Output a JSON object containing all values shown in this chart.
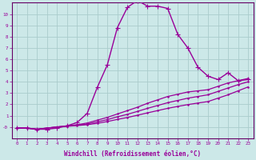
{
  "title": "",
  "xlabel": "Windchill (Refroidissement éolien,°C)",
  "ylabel": "",
  "background_color": "#cce8e8",
  "line_color": "#990099",
  "grid_color": "#aacccc",
  "axis_color": "#660066",
  "xlim_min": -0.5,
  "xlim_max": 23.5,
  "ylim_min": -1.0,
  "ylim_max": 11.0,
  "xticks": [
    0,
    1,
    2,
    3,
    4,
    5,
    6,
    7,
    8,
    9,
    10,
    11,
    12,
    13,
    14,
    15,
    16,
    17,
    18,
    19,
    20,
    21,
    22,
    23
  ],
  "yticks": [
    0,
    1,
    2,
    3,
    4,
    5,
    6,
    7,
    8,
    9,
    10
  ],
  "ytick_labels": [
    "-0",
    "1",
    "2",
    "3",
    "4",
    "5",
    "6",
    "7",
    "8",
    "9",
    "10"
  ],
  "series": [
    {
      "x": [
        0,
        1,
        2,
        3,
        4,
        5,
        6,
        7,
        8,
        9,
        10,
        11,
        12,
        13,
        14,
        15,
        16,
        17,
        18,
        19,
        20,
        21,
        22,
        23
      ],
      "y": [
        -0.1,
        -0.1,
        -0.2,
        -0.2,
        -0.1,
        0.1,
        0.4,
        1.2,
        3.5,
        5.5,
        8.8,
        10.6,
        11.2,
        10.7,
        10.7,
        10.5,
        8.2,
        7.0,
        5.3,
        4.5,
        4.2,
        4.8,
        4.1,
        4.2
      ],
      "marker": "+",
      "markersize": 4,
      "linewidth": 1.0
    },
    {
      "x": [
        0,
        1,
        2,
        3,
        4,
        5,
        6,
        7,
        8,
        9,
        10,
        11,
        12,
        13,
        14,
        15,
        16,
        17,
        18,
        19,
        20,
        21,
        22,
        23
      ],
      "y": [
        -0.1,
        -0.1,
        -0.2,
        -0.1,
        0.0,
        0.1,
        0.2,
        0.35,
        0.6,
        0.85,
        1.15,
        1.45,
        1.75,
        2.1,
        2.4,
        2.7,
        2.9,
        3.1,
        3.2,
        3.3,
        3.6,
        3.9,
        4.1,
        4.3
      ],
      "marker": ".",
      "markersize": 2,
      "linewidth": 0.9
    },
    {
      "x": [
        0,
        1,
        2,
        3,
        4,
        5,
        6,
        7,
        8,
        9,
        10,
        11,
        12,
        13,
        14,
        15,
        16,
        17,
        18,
        19,
        20,
        21,
        22,
        23
      ],
      "y": [
        -0.1,
        -0.1,
        -0.2,
        -0.1,
        0.0,
        0.08,
        0.16,
        0.26,
        0.45,
        0.65,
        0.9,
        1.12,
        1.38,
        1.65,
        1.9,
        2.15,
        2.35,
        2.55,
        2.7,
        2.85,
        3.15,
        3.45,
        3.75,
        4.0
      ],
      "marker": ".",
      "markersize": 2,
      "linewidth": 0.9
    },
    {
      "x": [
        0,
        1,
        2,
        3,
        4,
        5,
        6,
        7,
        8,
        9,
        10,
        11,
        12,
        13,
        14,
        15,
        16,
        17,
        18,
        19,
        20,
        21,
        22,
        23
      ],
      "y": [
        -0.1,
        -0.1,
        -0.2,
        -0.1,
        0.0,
        0.06,
        0.12,
        0.2,
        0.32,
        0.48,
        0.67,
        0.84,
        1.04,
        1.25,
        1.45,
        1.65,
        1.82,
        1.98,
        2.12,
        2.25,
        2.55,
        2.85,
        3.2,
        3.55
      ],
      "marker": ".",
      "markersize": 2,
      "linewidth": 0.9
    }
  ]
}
